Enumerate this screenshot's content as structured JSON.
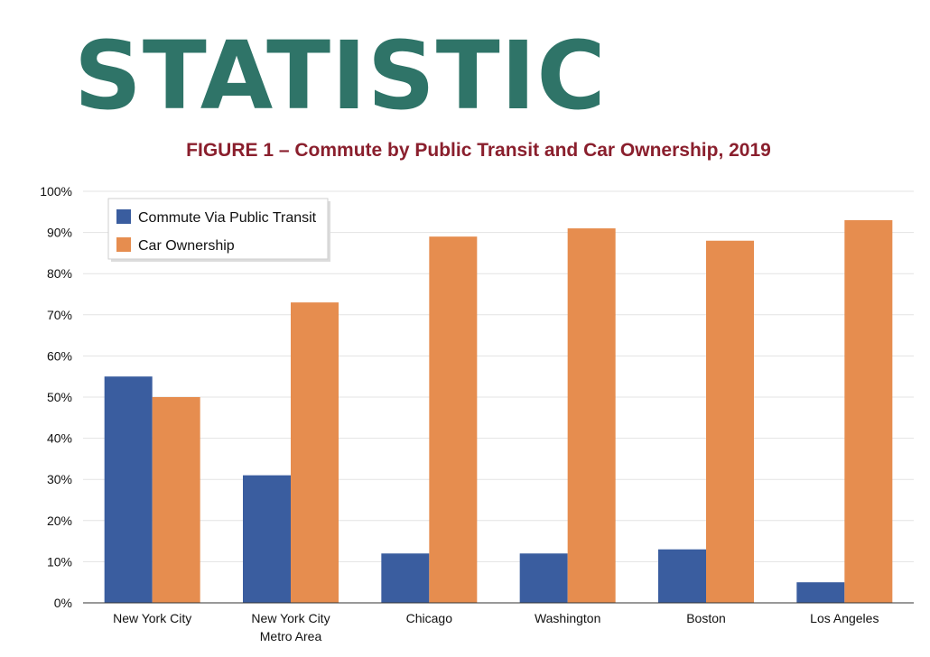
{
  "header": {
    "title": "STATISTIC"
  },
  "chart_data": {
    "type": "bar",
    "title": "FIGURE 1 – Commute by Public Transit and Car Ownership, 2019",
    "xlabel": "",
    "ylabel": "",
    "ylim": [
      0,
      100
    ],
    "yticks": [
      "0%",
      "10%",
      "20%",
      "30%",
      "40%",
      "50%",
      "60%",
      "70%",
      "80%",
      "90%",
      "100%"
    ],
    "categories": [
      [
        "New York City"
      ],
      [
        "New York City",
        "Metro Area"
      ],
      [
        "Chicago"
      ],
      [
        "Washington"
      ],
      [
        "Boston"
      ],
      [
        "Los Angeles"
      ]
    ],
    "series": [
      {
        "name": "Commute Via Public Transit",
        "color": "#3a5d9f",
        "values": [
          55,
          31,
          12,
          12,
          13,
          5
        ]
      },
      {
        "name": "Car Ownership",
        "color": "#e68d4f",
        "values": [
          50,
          73,
          89,
          91,
          88,
          93
        ]
      }
    ],
    "grid": true,
    "legend": "top-left"
  }
}
